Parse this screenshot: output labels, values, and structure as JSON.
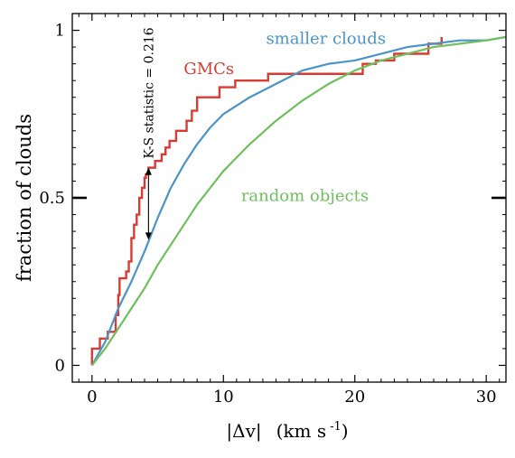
{
  "chart_data": {
    "type": "line",
    "xlabel_bars": "|Δv|",
    "xlabel_units": "(km s",
    "xlabel_sup": "-1",
    "xlabel_close": ")",
    "ylabel": "fraction of clouds",
    "xlim": [
      -1.5,
      31.5
    ],
    "ylim": [
      -0.05,
      1.05
    ],
    "x_ticks": [
      0,
      10,
      20,
      30
    ],
    "x_tick_labels": [
      "0",
      "10",
      "20",
      "30"
    ],
    "y_ticks": [
      0,
      0.5,
      1
    ],
    "y_tick_labels": [
      "0",
      "0.5",
      "1"
    ],
    "grid": false,
    "colors": {
      "gmcs": "#d93a32",
      "smaller": "#4a94c8",
      "random": "#6fbf5d",
      "axes": "#000000"
    },
    "series": [
      {
        "name": "GMCs",
        "color": "#d93a32",
        "step": true,
        "points": [
          [
            0,
            0
          ],
          [
            0,
            0.05
          ],
          [
            0.6,
            0.05
          ],
          [
            0.6,
            0.08
          ],
          [
            1.2,
            0.08
          ],
          [
            1.2,
            0.1
          ],
          [
            1.8,
            0.1
          ],
          [
            1.8,
            0.15
          ],
          [
            2.0,
            0.15
          ],
          [
            2.0,
            0.21
          ],
          [
            2.1,
            0.21
          ],
          [
            2.1,
            0.26
          ],
          [
            2.6,
            0.26
          ],
          [
            2.6,
            0.28
          ],
          [
            2.8,
            0.28
          ],
          [
            2.8,
            0.31
          ],
          [
            3.0,
            0.31
          ],
          [
            3.0,
            0.38
          ],
          [
            3.2,
            0.38
          ],
          [
            3.2,
            0.42
          ],
          [
            3.4,
            0.42
          ],
          [
            3.4,
            0.45
          ],
          [
            3.6,
            0.45
          ],
          [
            3.6,
            0.5
          ],
          [
            3.8,
            0.5
          ],
          [
            3.8,
            0.53
          ],
          [
            4.0,
            0.53
          ],
          [
            4.0,
            0.56
          ],
          [
            4.1,
            0.56
          ],
          [
            4.1,
            0.57
          ],
          [
            4.3,
            0.57
          ],
          [
            4.3,
            0.59
          ],
          [
            4.8,
            0.59
          ],
          [
            4.8,
            0.61
          ],
          [
            5.3,
            0.61
          ],
          [
            5.3,
            0.63
          ],
          [
            5.6,
            0.63
          ],
          [
            5.6,
            0.65
          ],
          [
            5.9,
            0.65
          ],
          [
            5.9,
            0.67
          ],
          [
            6.4,
            0.67
          ],
          [
            6.4,
            0.7
          ],
          [
            7.2,
            0.7
          ],
          [
            7.2,
            0.73
          ],
          [
            7.6,
            0.73
          ],
          [
            7.6,
            0.76
          ],
          [
            8.0,
            0.76
          ],
          [
            8.0,
            0.8
          ],
          [
            9.7,
            0.8
          ],
          [
            9.7,
            0.83
          ],
          [
            10.9,
            0.83
          ],
          [
            10.9,
            0.85
          ],
          [
            13.4,
            0.85
          ],
          [
            13.4,
            0.87
          ],
          [
            20.6,
            0.87
          ],
          [
            20.6,
            0.9
          ],
          [
            21.6,
            0.9
          ],
          [
            21.6,
            0.91
          ],
          [
            23.0,
            0.91
          ],
          [
            23.0,
            0.93
          ],
          [
            25.6,
            0.93
          ],
          [
            25.6,
            0.96
          ],
          [
            26.6,
            0.96
          ],
          [
            26.6,
            0.98
          ]
        ]
      },
      {
        "name": "smaller clouds",
        "color": "#4a94c8",
        "step": false,
        "points": [
          [
            0,
            0
          ],
          [
            1,
            0.07
          ],
          [
            2,
            0.17
          ],
          [
            3,
            0.25
          ],
          [
            4,
            0.34
          ],
          [
            5,
            0.44
          ],
          [
            6,
            0.53
          ],
          [
            7,
            0.6
          ],
          [
            8,
            0.66
          ],
          [
            9,
            0.71
          ],
          [
            10,
            0.75
          ],
          [
            12,
            0.8
          ],
          [
            14,
            0.84
          ],
          [
            16,
            0.88
          ],
          [
            18,
            0.9
          ],
          [
            20,
            0.91
          ],
          [
            22,
            0.93
          ],
          [
            24,
            0.95
          ],
          [
            26,
            0.96
          ],
          [
            28,
            0.97
          ],
          [
            30,
            0.97
          ],
          [
            31.5,
            0.98
          ]
        ]
      },
      {
        "name": "random objects",
        "color": "#6fbf5d",
        "step": false,
        "points": [
          [
            0,
            0
          ],
          [
            1,
            0.05
          ],
          [
            2,
            0.11
          ],
          [
            3,
            0.17
          ],
          [
            4,
            0.23
          ],
          [
            5,
            0.3
          ],
          [
            6,
            0.36
          ],
          [
            7,
            0.42
          ],
          [
            8,
            0.48
          ],
          [
            9,
            0.53
          ],
          [
            10,
            0.58
          ],
          [
            12,
            0.66
          ],
          [
            14,
            0.73
          ],
          [
            16,
            0.79
          ],
          [
            18,
            0.84
          ],
          [
            20,
            0.88
          ],
          [
            22,
            0.91
          ],
          [
            24,
            0.93
          ],
          [
            26,
            0.95
          ],
          [
            28,
            0.96
          ],
          [
            30,
            0.97
          ],
          [
            31.5,
            0.98
          ]
        ]
      }
    ],
    "labels": [
      {
        "text": "GMCs",
        "color": "#d93a32",
        "x": 8.9,
        "y": 0.87
      },
      {
        "text": "smaller clouds",
        "color": "#4a94c8",
        "x": 17.8,
        "y": 0.96
      },
      {
        "text": "random objects",
        "color": "#6fbf5d",
        "x": 16.2,
        "y": 0.49
      }
    ],
    "ks_annotation": {
      "text": "K-S statistic = 0.216",
      "x": 4.3,
      "y_top": 0.59,
      "y_bottom": 0.375
    }
  }
}
